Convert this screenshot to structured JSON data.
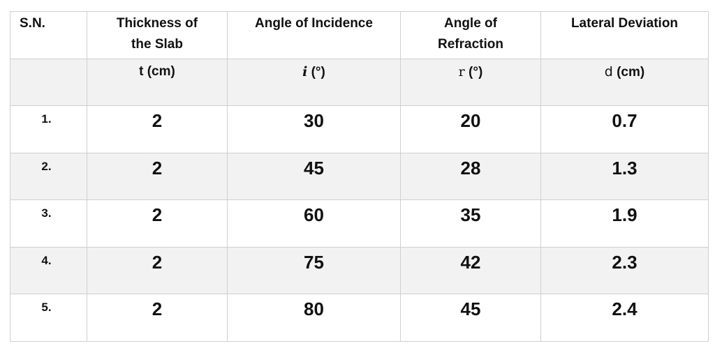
{
  "table": {
    "headers": [
      [
        "S.N."
      ],
      [
        "Thickness of",
        "the Slab"
      ],
      [
        "Angle of Incidence"
      ],
      [
        "Angle of",
        "Refraction"
      ],
      [
        "Lateral Deviation"
      ]
    ],
    "units": [
      {
        "symbol": "t",
        "unit": "(cm)"
      },
      {
        "symbol": "i",
        "unit": "(°)"
      },
      {
        "symbol": "r",
        "unit": "(°)"
      },
      {
        "symbol": "d",
        "unit": "(cm)"
      }
    ],
    "rows": [
      [
        "1.",
        2,
        30,
        20,
        0.7
      ],
      [
        "2.",
        2,
        45,
        28,
        1.3
      ],
      [
        "3.",
        2,
        60,
        35,
        1.9
      ],
      [
        "4.",
        2,
        75,
        42,
        2.3
      ],
      [
        "5.",
        2,
        80,
        45,
        2.4
      ]
    ]
  }
}
